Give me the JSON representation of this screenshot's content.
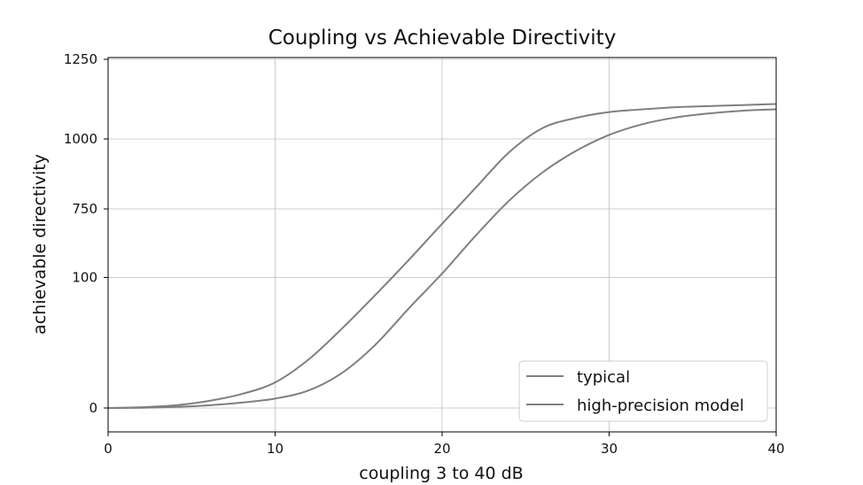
{
  "chart_data": {
    "type": "line",
    "title": "Coupling vs Achievable Directivity",
    "xlabel": "coupling 3 to 40 dB",
    "ylabel": "achievable directivity",
    "xlim": [
      0,
      40
    ],
    "x_ticks": [
      "0",
      "10",
      "20",
      "30",
      "40"
    ],
    "y_ticks": [
      "0",
      "100",
      "750",
      "1000",
      "1250"
    ],
    "y_scale_note": "non-uniform categorical tick spacing",
    "grid": true,
    "legend_position": "bottom-right",
    "line_color": "#7f7f7f",
    "series": [
      {
        "name": "typical",
        "x": [
          0,
          2,
          4,
          6,
          8,
          10,
          12,
          14,
          16,
          18,
          20,
          22,
          24,
          26,
          28,
          30,
          32,
          34,
          36,
          38,
          40
        ],
        "y_position": [
          0,
          0.003,
          0.01,
          0.026,
          0.052,
          0.095,
          0.18,
          0.295,
          0.42,
          0.55,
          0.685,
          0.818,
          0.95,
          1.04,
          1.078,
          1.1,
          1.11,
          1.118,
          1.122,
          1.126,
          1.13
        ]
      },
      {
        "name": "high-precision model",
        "x": [
          0,
          2,
          4,
          6,
          8,
          10,
          12,
          14,
          16,
          18,
          20,
          22,
          24,
          26,
          28,
          30,
          32,
          34,
          36,
          38,
          40
        ],
        "y_position": [
          0,
          0.001,
          0.004,
          0.01,
          0.02,
          0.035,
          0.065,
          0.13,
          0.235,
          0.37,
          0.5,
          0.64,
          0.77,
          0.875,
          0.955,
          1.015,
          1.055,
          1.08,
          1.095,
          1.105,
          1.11
        ]
      }
    ]
  }
}
